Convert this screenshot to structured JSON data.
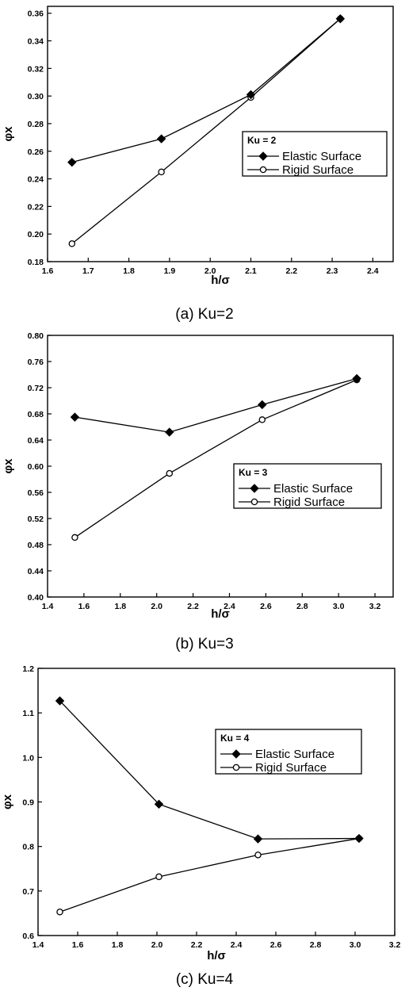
{
  "chart_data": [
    {
      "type": "line",
      "caption": "(a) Ku=2",
      "xlabel": "h/σ",
      "ylabel": "φx",
      "xlim": [
        1.6,
        2.45
      ],
      "ylim": [
        0.18,
        0.365
      ],
      "xticks": [
        1.6,
        1.7,
        1.8,
        1.9,
        2.0,
        2.1,
        2.2,
        2.3,
        2.4
      ],
      "yticks": [
        0.18,
        0.2,
        0.22,
        0.24,
        0.26,
        0.28,
        0.3,
        0.32,
        0.34,
        0.36
      ],
      "decimals_x": 1,
      "decimals_y": 2,
      "legend_title": "Ku = 2",
      "legend_position": "right-center",
      "series": [
        {
          "name": "Elastic Surface",
          "marker": "diamond-filled",
          "x": [
            1.66,
            1.88,
            2.1,
            2.32
          ],
          "y": [
            0.252,
            0.269,
            0.301,
            0.356
          ]
        },
        {
          "name": "Rigid Surface",
          "marker": "circle-open",
          "x": [
            1.66,
            1.88,
            2.1,
            2.32
          ],
          "y": [
            0.193,
            0.245,
            0.299,
            0.356
          ]
        }
      ]
    },
    {
      "type": "line",
      "caption": "(b) Ku=3",
      "xlabel": "h/σ",
      "ylabel": "φx",
      "xlim": [
        1.4,
        3.3
      ],
      "ylim": [
        0.4,
        0.8
      ],
      "xticks": [
        1.4,
        1.6,
        1.8,
        2.0,
        2.2,
        2.4,
        2.6,
        2.8,
        3.0,
        3.2
      ],
      "yticks": [
        0.4,
        0.44,
        0.48,
        0.52,
        0.56,
        0.6,
        0.64,
        0.68,
        0.72,
        0.76,
        0.8
      ],
      "decimals_x": 1,
      "decimals_y": 2,
      "legend_title": "Ku = 3",
      "legend_position": "right-center",
      "series": [
        {
          "name": "Elastic Surface",
          "marker": "diamond-filled",
          "x": [
            1.55,
            2.07,
            2.58,
            3.1
          ],
          "y": [
            0.675,
            0.652,
            0.694,
            0.734
          ]
        },
        {
          "name": "Rigid Surface",
          "marker": "circle-open",
          "x": [
            1.55,
            2.07,
            2.58,
            3.1
          ],
          "y": [
            0.491,
            0.589,
            0.671,
            0.732
          ]
        }
      ]
    },
    {
      "type": "line",
      "caption": "(c) Ku=4",
      "xlabel": "h/σ",
      "ylabel": "φx",
      "xlim": [
        1.4,
        3.2
      ],
      "ylim": [
        0.6,
        1.2
      ],
      "xticks": [
        1.4,
        1.6,
        1.8,
        2.0,
        2.2,
        2.4,
        2.6,
        2.8,
        3.0,
        3.2
      ],
      "yticks": [
        0.6,
        0.7,
        0.8,
        0.9,
        1.0,
        1.1,
        1.2
      ],
      "decimals_x": 1,
      "decimals_y": 1,
      "legend_title": "Ku = 4",
      "legend_position": "top-right",
      "series": [
        {
          "name": "Elastic Surface",
          "marker": "diamond-filled",
          "x": [
            1.51,
            2.01,
            2.51,
            3.02
          ],
          "y": [
            1.127,
            0.895,
            0.817,
            0.818
          ]
        },
        {
          "name": "Rigid Surface",
          "marker": "circle-open",
          "x": [
            1.51,
            2.01,
            2.51,
            3.02
          ],
          "y": [
            0.653,
            0.732,
            0.781,
            0.818
          ]
        }
      ]
    }
  ]
}
